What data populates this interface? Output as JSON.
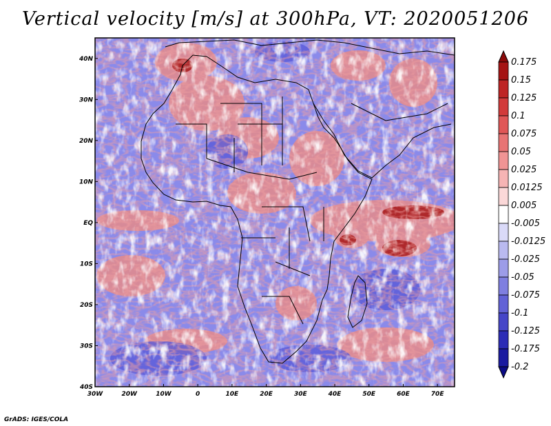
{
  "title": "Vertical velocity [m/s] at 300hPa, VT: 2020051206",
  "credit": "GrADS: IGES/COLA",
  "map": {
    "region": "Africa",
    "lon_range": [
      -30,
      75
    ],
    "lat_range": [
      -40,
      45
    ],
    "lon_ticks": [
      "30W",
      "20W",
      "10W",
      "0",
      "10E",
      "20E",
      "30E",
      "40E",
      "50E",
      "60E",
      "70E"
    ],
    "lat_ticks": [
      "40N",
      "30N",
      "20N",
      "10N",
      "EQ",
      "10S",
      "20S",
      "30S",
      "40S"
    ],
    "lat_values": [
      40,
      30,
      20,
      10,
      0,
      -10,
      -20,
      -30,
      -40
    ],
    "lon_values": [
      -30,
      -20,
      -10,
      0,
      10,
      20,
      30,
      40,
      50,
      60,
      70
    ]
  },
  "colorbar": {
    "labels": [
      "0.175",
      "0.15",
      "0.125",
      "0.1",
      "0.075",
      "0.05",
      "0.025",
      "0.0125",
      "0.005",
      "-0.005",
      "-0.0125",
      "-0.025",
      "-0.05",
      "-0.075",
      "-0.1",
      "-0.125",
      "-0.175",
      "-0.2"
    ],
    "colors": [
      "#8b0a0a",
      "#a51414",
      "#be2424",
      "#d23a3a",
      "#e05656",
      "#e87474",
      "#f09494",
      "#f6b4b4",
      "#fbd8d8",
      "#ffffff",
      "#dadaf8",
      "#babaf0",
      "#9c9ce8",
      "#7f7fe0",
      "#6262d6",
      "#4646c8",
      "#2c2cb6",
      "#1a1aa0",
      "#0c0c86"
    ]
  },
  "colors": {
    "positive": "#e06a6a",
    "negative": "#7a7ae6",
    "neutral": "#ffffff"
  }
}
